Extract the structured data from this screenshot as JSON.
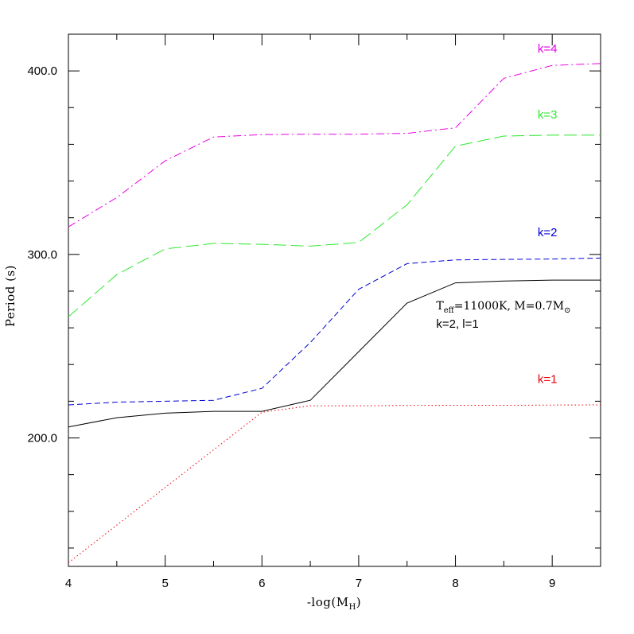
{
  "chart_data": {
    "type": "line",
    "xlabel": "-log(M",
    "xlabel_sub": "H",
    "xlabel_close": ")",
    "ylabel": "Period (s)",
    "xlim": [
      4,
      9.5
    ],
    "ylim": [
      130,
      420
    ],
    "x_ticks": [
      4,
      5,
      6,
      7,
      8,
      9
    ],
    "y_tick_labels": [
      200,
      300,
      400
    ],
    "y_tick_label_text": [
      "200.0",
      "300.0",
      "400.0"
    ],
    "grid": false,
    "series": [
      {
        "name": "k=1",
        "color": "#e8000a",
        "style": "dotted",
        "x": [
          4,
          6.0,
          6.5,
          7,
          7.5,
          8,
          8.5,
          9,
          9.5
        ],
        "y": [
          132,
          214,
          217.5,
          217.5,
          217.7,
          217.8,
          217.8,
          217.9,
          218
        ]
      },
      {
        "name": "k=2",
        "color": "#0000d8",
        "style": "dashed",
        "x": [
          4,
          4.5,
          5,
          5.5,
          6,
          6.5,
          7,
          7.5,
          8,
          8.5,
          9,
          9.5
        ],
        "y": [
          218,
          219.5,
          220,
          220.5,
          227,
          252,
          281,
          295,
          297,
          297.3,
          297.5,
          298
        ]
      },
      {
        "name": "k=3",
        "color": "#2ee82e",
        "style": "long-dash",
        "x": [
          4,
          4.5,
          5,
          5.5,
          6,
          6.5,
          7,
          7.5,
          8,
          8.5,
          9,
          9.5
        ],
        "y": [
          266,
          289,
          303,
          306,
          305.5,
          304.5,
          306.5,
          327,
          359,
          364.5,
          365,
          365
        ]
      },
      {
        "name": "k=4",
        "color": "#e800e8",
        "style": "dash-dot",
        "x": [
          4,
          4.5,
          5,
          5.5,
          6,
          6.5,
          7,
          7.5,
          8,
          8.5,
          9,
          9.5
        ],
        "y": [
          315,
          331,
          351,
          364,
          365.3,
          365.5,
          365.5,
          366,
          369,
          396,
          403,
          404
        ]
      },
      {
        "name": "k=2, l=1",
        "color": "#000000",
        "style": "solid",
        "x": [
          4,
          4.5,
          5,
          5.5,
          6,
          6.5,
          7,
          7.5,
          8,
          8.5,
          9,
          9.5
        ],
        "y": [
          206,
          211,
          213.5,
          214.5,
          214.5,
          220.5,
          247,
          273.5,
          284.5,
          285.5,
          286,
          286
        ]
      }
    ],
    "labels": [
      {
        "text": "k=4",
        "color": "#e800e8",
        "x": 8.85,
        "y": 410
      },
      {
        "text": "k=3",
        "color": "#2ee82e",
        "x": 8.85,
        "y": 374
      },
      {
        "text": "k=2",
        "color": "#0000d8",
        "x": 8.85,
        "y": 310
      },
      {
        "text": "k=1",
        "color": "#e8000a",
        "x": 8.85,
        "y": 230
      }
    ],
    "annotation": {
      "line1_T": "T",
      "line1_eff": "eff",
      "line1_rest": "=11000K,  M=0.7M",
      "line1_sun": "⊙",
      "line2": "k=2, l=1",
      "x": 7.9,
      "y": 270
    }
  }
}
